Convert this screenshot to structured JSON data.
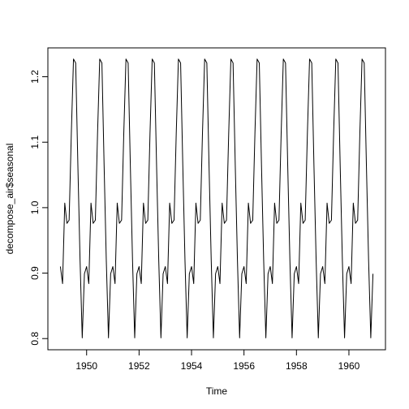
{
  "chart_data": {
    "type": "line",
    "title": "",
    "xlabel": "Time",
    "ylabel": "decompose_air$seasonal",
    "xlim": [
      1949.0,
      1960.9167
    ],
    "ylim": [
      0.8,
      1.227
    ],
    "x_ticks": [
      1950,
      1952,
      1954,
      1956,
      1958,
      1960
    ],
    "x_tick_labels": [
      "1950",
      "1952",
      "1954",
      "1956",
      "1958",
      "1960"
    ],
    "y_ticks": [
      0.8,
      0.9,
      1.0,
      1.1,
      1.2
    ],
    "y_tick_labels": [
      "0.8",
      "0.9",
      "1.0",
      "1.1",
      "1.2"
    ],
    "frequency": 12,
    "start": 1949.0,
    "seasonal_pattern": [
      0.91,
      0.884,
      1.007,
      0.976,
      0.981,
      1.113,
      1.227,
      1.221,
      1.065,
      0.92,
      0.801,
      0.899
    ],
    "years": [
      1949,
      1950,
      1951,
      1952,
      1953,
      1954,
      1955,
      1956,
      1957,
      1958,
      1959,
      1960
    ],
    "line_color": "#000000",
    "grid": false
  }
}
